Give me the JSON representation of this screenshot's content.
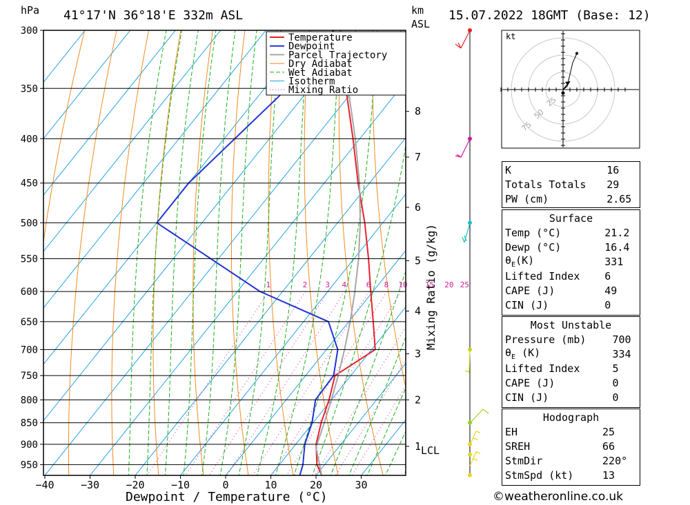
{
  "header": {
    "location": "41°17'N  36°18'E  332m  ASL",
    "datetime": "15.07.2022  18GMT  (Base: 12)",
    "pressure_unit": "hPa",
    "height_unit_top": "km",
    "height_unit_bottom": "ASL"
  },
  "colors": {
    "temperature": "#e8202a",
    "dewpoint": "#1f33d6",
    "parcel": "#a6a6a6",
    "dry_adiabat": "#f08a1e",
    "wet_adiabat": "#19b01b",
    "isotherm": "#1fa0e6",
    "mixing_ratio": "#d0199c"
  },
  "chart_data": {
    "type": "skew-t",
    "xlabel": "Dewpoint / Temperature (°C)",
    "y2label": "Mixing Ratio (g/kg)",
    "x_ticks": [
      -40,
      -30,
      -20,
      -10,
      0,
      10,
      20,
      30
    ],
    "pressure_levels": [
      300,
      350,
      400,
      450,
      500,
      550,
      600,
      650,
      700,
      750,
      800,
      850,
      900,
      950
    ],
    "height_km_ticks": [
      {
        "label": "8",
        "p": 372
      },
      {
        "label": "7",
        "p": 420
      },
      {
        "label": "6",
        "p": 480
      },
      {
        "label": "5",
        "p": 553
      },
      {
        "label": "4",
        "p": 632
      },
      {
        "label": "3",
        "p": 708
      },
      {
        "label": "2",
        "p": 800
      },
      {
        "label": "1",
        "p": 905
      }
    ],
    "lcl": {
      "label": "LCL",
      "p": 907
    },
    "mixing_ratio_labels": [
      "1",
      "2",
      "3",
      "4",
      "6",
      "8",
      "10",
      "15",
      "20",
      "25"
    ],
    "series": [
      {
        "name": "Temperature",
        "points": [
          [
            977,
            21.2
          ],
          [
            950,
            18.3
          ],
          [
            900,
            14.5
          ],
          [
            850,
            11.8
          ],
          [
            800,
            9.5
          ],
          [
            750,
            6.5
          ],
          [
            700,
            10.8
          ],
          [
            650,
            5.4
          ],
          [
            600,
            -0.5
          ],
          [
            550,
            -6.8
          ],
          [
            500,
            -14.0
          ],
          [
            450,
            -22.5
          ],
          [
            400,
            -31.5
          ],
          [
            350,
            -42.0
          ]
        ]
      },
      {
        "name": "Dewpoint",
        "points": [
          [
            977,
            16.4
          ],
          [
            950,
            15.2
          ],
          [
            900,
            12.0
          ],
          [
            850,
            9.8
          ],
          [
            800,
            6.5
          ],
          [
            750,
            6.2
          ],
          [
            700,
            2.5
          ],
          [
            650,
            -4.5
          ],
          [
            600,
            -25.0
          ],
          [
            500,
            -60.0
          ],
          [
            450,
            -60.0
          ],
          [
            350,
            -55.0
          ],
          [
            300,
            -55.0
          ]
        ]
      },
      {
        "name": "Parcel Trajectory",
        "points": [
          [
            977,
            21.2
          ],
          [
            907,
            15.0
          ],
          [
            850,
            12.5
          ],
          [
            800,
            10.0
          ],
          [
            750,
            7.2
          ],
          [
            700,
            4.0
          ],
          [
            650,
            0.3
          ],
          [
            600,
            -4.0
          ],
          [
            550,
            -9.0
          ],
          [
            500,
            -15.0
          ],
          [
            450,
            -22.2
          ],
          [
            400,
            -31.0
          ],
          [
            350,
            -41.5
          ],
          [
            310,
            -52.0
          ]
        ]
      }
    ],
    "legend": {
      "placement": "top-right",
      "entries": [
        "Temperature",
        "Dewpoint",
        "Parcel Trajectory",
        "Dry Adiabat",
        "Wet Adiabat",
        "Isotherm",
        "Mixing Ratio"
      ]
    },
    "hodograph": {
      "unit_label": "kt",
      "ring_labels": [
        "25",
        "50",
        "75"
      ],
      "points": [
        [
          0,
          0
        ],
        [
          6,
          3
        ],
        [
          8,
          9
        ],
        [
          14,
          26
        ],
        [
          20,
          35
        ]
      ],
      "storm_motion": {
        "dir": 220,
        "speed": 13
      }
    }
  },
  "indices": {
    "k": {
      "label": "K",
      "value": "16"
    },
    "totals": {
      "label": "Totals Totals",
      "value": "29"
    },
    "pw": {
      "label": "PW (cm)",
      "value": "2.65"
    }
  },
  "surface": {
    "title": "Surface",
    "temp": {
      "label": "Temp (°C)",
      "value": "21.2"
    },
    "dewp": {
      "label": "Dewp (°C)",
      "value": "16.4"
    },
    "theta": {
      "label": "θ",
      "sub": "E",
      "suffix": "(K)",
      "value": "331"
    },
    "li": {
      "label": "Lifted Index",
      "value": "6"
    },
    "cape": {
      "label": "CAPE (J)",
      "value": "49"
    },
    "cin": {
      "label": "CIN (J)",
      "value": "0"
    }
  },
  "unstable": {
    "title": "Most Unstable",
    "pressure": {
      "label": "Pressure (mb)",
      "value": "700"
    },
    "theta": {
      "label": "θ",
      "sub": "E",
      "suffix": " (K)",
      "value": "334"
    },
    "li": {
      "label": "Lifted Index",
      "value": "5"
    },
    "cape": {
      "label": "CAPE (J)",
      "value": "0"
    },
    "cin": {
      "label": "CIN (J)",
      "value": "0"
    }
  },
  "hodo_table": {
    "title": "Hodograph",
    "eh": {
      "label": "EH",
      "value": "25"
    },
    "sreh": {
      "label": "SREH",
      "value": "66"
    },
    "stmdir": {
      "label": "StmDir",
      "value": "220°"
    },
    "stmspd": {
      "label": "StmSpd (kt)",
      "value": "13"
    }
  },
  "footer": {
    "copyright": "©weatheronline.co.uk"
  }
}
